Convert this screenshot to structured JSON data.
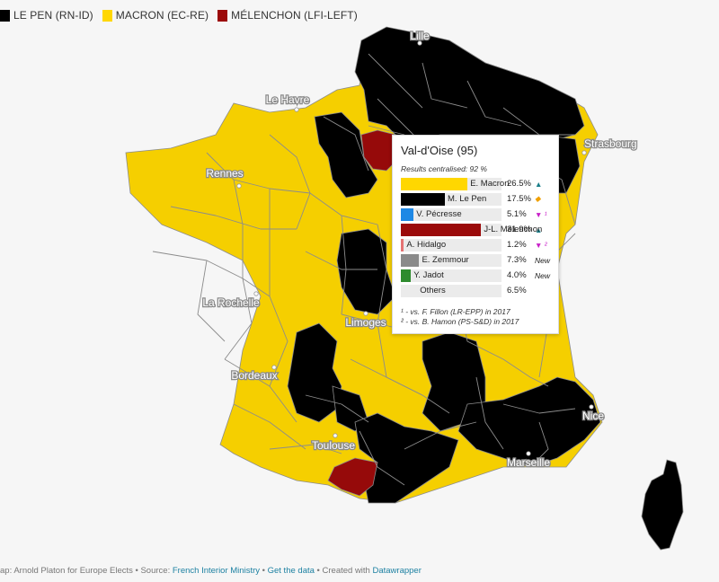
{
  "legend": [
    {
      "label": "LE PEN (RN-ID)",
      "color": "#000000"
    },
    {
      "label": "MACRON (EC-RE)",
      "color": "#ffd700"
    },
    {
      "label": "MÉLENCHON (LFI-LEFT)",
      "color": "#9b0a0a"
    }
  ],
  "colors": {
    "lepen": "#000000",
    "macron": "#f5cf00",
    "melenchon": "#960a0a",
    "border": "#8c8c8c"
  },
  "cities": [
    "Lille",
    "Le Havre",
    "Strasbourg",
    "Rennes",
    "La Rochelle",
    "Limoges",
    "Bordeaux",
    "Nice",
    "Toulouse",
    "Marseille"
  ],
  "tooltip": {
    "title": "Val-d'Oise (95)",
    "subtitle": "Results centralised: 92 %",
    "rows": [
      {
        "name": "E. Macron",
        "value": "26.5%",
        "share": 26.5,
        "color": "#ffd700",
        "trend": "▲",
        "trend_color": "#1a7f8a"
      },
      {
        "name": "M. Le Pen",
        "value": "17.5%",
        "share": 17.5,
        "color": "#000000",
        "trend": "◆",
        "trend_color": "#f0a000"
      },
      {
        "name": "V. Pécresse",
        "value": "5.1%",
        "share": 5.1,
        "color": "#1e88e5",
        "trend": "▼ ¹",
        "trend_color": "#c81ec8"
      },
      {
        "name": "J-L. Mélenchon",
        "value": "31.9%",
        "share": 31.9,
        "color": "#9b0a0a",
        "trend": "▲",
        "trend_color": "#1a7f8a"
      },
      {
        "name": "A. Hidalgo",
        "value": "1.2%",
        "share": 1.2,
        "color": "#e57373",
        "trend": "▼ ²",
        "trend_color": "#c81ec8"
      },
      {
        "name": "E. Zemmour",
        "value": "7.3%",
        "share": 7.3,
        "color": "#8a8a8a",
        "trend": "New",
        "trend_color": "#222222"
      },
      {
        "name": "Y. Jadot",
        "value": "4.0%",
        "share": 4.0,
        "color": "#2e8b2e",
        "trend": "New",
        "trend_color": "#222222"
      },
      {
        "name": "Others",
        "value": "6.5%",
        "share": 6.5,
        "color": "#ebebeb",
        "trend": "",
        "trend_color": "#222222"
      }
    ],
    "footnote1": "¹ - vs. F. Fillon (LR-EPP) in 2017",
    "footnote2": "² - vs. B. Hamon (PS-S&D) in 2017"
  },
  "footer": {
    "credit": "ap: Arnold Platon for Europe Elects • Source: ",
    "source_link": "French Interior Ministry",
    "sep": " • ",
    "data_link": "Get the data",
    "created": " • Created with ",
    "tool_link": "Datawrapper"
  }
}
